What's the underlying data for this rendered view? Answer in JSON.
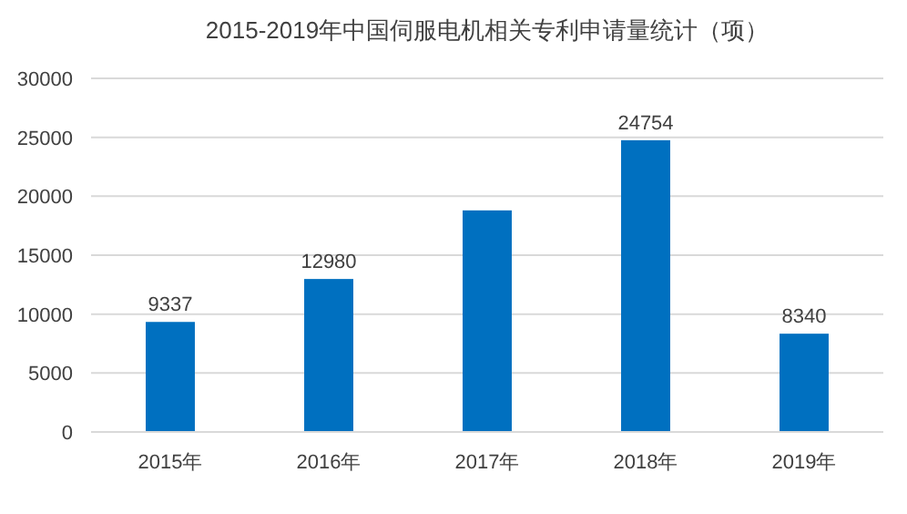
{
  "chart_data": {
    "type": "bar",
    "title": "2015-2019年中国伺服电机相关专利申请量统计（项）",
    "categories": [
      "2015年",
      "2016年",
      "2017年",
      "2018年",
      "2019年"
    ],
    "values": [
      9337,
      12980,
      18800,
      24754,
      8340
    ],
    "value_labels": [
      "9337",
      "12980",
      null,
      "24754",
      "8340"
    ],
    "color": "#0070c0",
    "ylim": [
      0,
      30000
    ],
    "yticks": [
      0,
      5000,
      10000,
      15000,
      20000,
      25000,
      30000
    ],
    "grid": "y"
  }
}
